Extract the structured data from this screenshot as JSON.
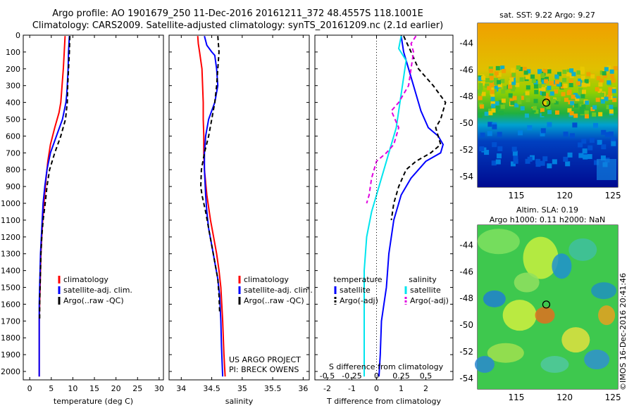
{
  "header": {
    "line1": "Argo profile: AO 1901679_250 11-Dec-2016 20161211_372 48.4557S 118.1001E",
    "line2": "Climatology: CARS2009. Satellite-adjusted climatology: synTS_20161209.nc (2.1d earlier)"
  },
  "colors": {
    "climatology": "#ff0000",
    "satellite": "#0000ff",
    "argo": "#000000",
    "salinity_sat": "#00e5ee",
    "salinity_argo": "#e000e0"
  },
  "chart_data": [
    {
      "type": "line",
      "panel": "temperature",
      "xlabel": "temperature (deg C)",
      "ylabel": "",
      "xlim": [
        -1.5,
        31
      ],
      "ylim": [
        2050,
        0
      ],
      "xticks": [
        "0",
        "5",
        "10",
        "15",
        "20",
        "25",
        "30"
      ],
      "xtick_values": [
        0,
        5,
        10,
        15,
        20,
        25,
        30
      ],
      "yticks": [
        "0",
        "100",
        "200",
        "300",
        "400",
        "500",
        "600",
        "700",
        "800",
        "900",
        "1000",
        "1100",
        "1200",
        "1300",
        "1400",
        "1500",
        "1600",
        "1700",
        "1800",
        "1900",
        "2000"
      ],
      "ytick_values": [
        0,
        100,
        200,
        300,
        400,
        500,
        600,
        700,
        800,
        900,
        1000,
        1100,
        1200,
        1300,
        1400,
        1500,
        1600,
        1700,
        1800,
        1900,
        2000
      ],
      "legend": [
        "climatology",
        "satellite-adj. clim.",
        "Argo(..raw -QC)"
      ],
      "series": [
        {
          "name": "climatology",
          "style": "solid",
          "x": [
            8.2,
            8.0,
            7.8,
            7.5,
            7.2,
            6.8,
            5.8,
            4.8,
            4.2,
            3.8,
            3.3,
            3.0,
            2.8,
            2.6,
            2.5,
            2.4,
            2.3,
            2.2,
            2.2,
            2.2
          ],
          "y": [
            5,
            100,
            200,
            300,
            400,
            460,
            550,
            650,
            750,
            850,
            1000,
            1100,
            1200,
            1300,
            1400,
            1500,
            1600,
            1700,
            1900,
            2030
          ]
        },
        {
          "name": "satellite-adj. clim.",
          "style": "solid",
          "x": [
            9.2,
            9.0,
            8.9,
            8.7,
            8.6,
            8.4,
            7.6,
            6.2,
            4.8,
            4.0,
            3.5,
            3.1,
            2.9,
            2.7,
            2.5,
            2.4,
            2.3,
            2.2,
            2.2,
            2.2
          ],
          "y": [
            5,
            100,
            200,
            300,
            350,
            400,
            500,
            600,
            700,
            800,
            900,
            1000,
            1100,
            1200,
            1300,
            1400,
            1500,
            1600,
            1800,
            2030
          ]
        },
        {
          "name": "Argo(..raw -QC)",
          "style": "dashed",
          "x": [
            9.3,
            9.2,
            9.0,
            8.8,
            8.7,
            8.3,
            7.2,
            5.8,
            4.6,
            4.0,
            3.6,
            3.1,
            2.8,
            2.6,
            2.5,
            2.4,
            2.3,
            2.3
          ],
          "y": [
            5,
            100,
            200,
            300,
            400,
            500,
            600,
            700,
            800,
            900,
            1000,
            1100,
            1200,
            1300,
            1400,
            1500,
            1600,
            1700
          ]
        }
      ]
    },
    {
      "type": "line",
      "panel": "salinity",
      "xlabel": "salinity",
      "xlim": [
        33.8,
        36.1
      ],
      "ylim": [
        2050,
        0
      ],
      "xticks": [
        "34",
        "34.5",
        "35",
        "35.5",
        "36"
      ],
      "xtick_values": [
        34,
        34.5,
        35,
        35.5,
        36
      ],
      "legend": [
        "climatology",
        "satellite-adj. clim.",
        "Argo(..raw -QC)"
      ],
      "annotation": [
        "US ARGO PROJECT",
        "PI: BRECK OWENS"
      ],
      "series": [
        {
          "name": "climatology",
          "style": "solid",
          "x": [
            34.27,
            34.28,
            34.3,
            34.34,
            34.35,
            34.36,
            34.36,
            34.37,
            34.37,
            34.38,
            34.42,
            34.48,
            34.53,
            34.58,
            34.62,
            34.65,
            34.68,
            34.7,
            34.72
          ],
          "y": [
            5,
            50,
            100,
            200,
            300,
            400,
            500,
            600,
            700,
            800,
            950,
            1100,
            1200,
            1300,
            1400,
            1500,
            1700,
            1900,
            2030
          ]
        },
        {
          "name": "satellite-adj. clim.",
          "style": "solid",
          "x": [
            34.38,
            34.42,
            34.5,
            34.55,
            34.58,
            34.6,
            34.55,
            34.45,
            34.4,
            34.38,
            34.38,
            34.4,
            34.42,
            34.45,
            34.5,
            34.55,
            34.6,
            34.63,
            34.65,
            34.66,
            34.68
          ],
          "y": [
            5,
            60,
            100,
            120,
            200,
            300,
            400,
            500,
            600,
            700,
            800,
            950,
            1050,
            1150,
            1250,
            1350,
            1450,
            1550,
            1700,
            1850,
            2030
          ]
        },
        {
          "name": "Argo(..raw -QC)",
          "style": "dashed",
          "x": [
            34.6,
            34.62,
            34.6,
            34.58,
            34.55,
            34.5,
            34.45,
            34.38,
            34.33,
            34.32,
            34.34,
            34.4,
            34.45,
            34.5,
            34.55,
            34.6,
            34.62,
            34.63
          ],
          "y": [
            5,
            100,
            200,
            300,
            400,
            500,
            600,
            700,
            800,
            900,
            950,
            1050,
            1150,
            1250,
            1350,
            1450,
            1550,
            1650
          ]
        }
      ]
    },
    {
      "type": "line",
      "panel": "difference",
      "xlabel": "T difference from climatology",
      "xlabel_top": "S difference from climatology",
      "xlim": [
        -2.5,
        3.1
      ],
      "ylim": [
        2050,
        0
      ],
      "xticks": [
        "-2",
        "-1",
        "0",
        "1",
        "2"
      ],
      "xtick_values": [
        -2,
        -1,
        0,
        1,
        2
      ],
      "sticks": [
        "-0.5",
        "-0.25",
        "0",
        "0.25",
        "0.5"
      ],
      "stick_pos": [
        -2,
        -1,
        0,
        1,
        2
      ],
      "legend_headers": [
        "temperature",
        "salinity"
      ],
      "legend": [
        "satellite",
        "Argo(-adj)",
        "satellite",
        "Argo(-adj)"
      ],
      "series": [
        {
          "name": "satellite",
          "quantity": "temperature",
          "style": "solid",
          "x": [
            1.0,
            1.1,
            1.3,
            1.5,
            1.7,
            1.8,
            2.1,
            2.5,
            2.7,
            2.6,
            2.0,
            1.4,
            1.0,
            0.7,
            0.5,
            0.4,
            0.3,
            0.2,
            0.15,
            0.1
          ],
          "y": [
            5,
            100,
            200,
            300,
            400,
            450,
            550,
            600,
            650,
            700,
            750,
            850,
            950,
            1100,
            1300,
            1500,
            1600,
            1700,
            1900,
            2030
          ]
        },
        {
          "name": "Argo(-adj)",
          "quantity": "temperature",
          "style": "dashed",
          "x": [
            1.1,
            1.4,
            1.7,
            2.3,
            2.8,
            2.6,
            2.4,
            2.5,
            2.6,
            2.2,
            1.6,
            1.2,
            0.9,
            0.7,
            0.6
          ],
          "y": [
            5,
            100,
            200,
            300,
            400,
            500,
            550,
            600,
            650,
            700,
            750,
            800,
            900,
            1000,
            1100
          ]
        },
        {
          "name": "satellite",
          "quantity": "salinity",
          "style": "solid",
          "x": [
            1.0,
            0.9,
            1.2,
            1.1,
            1.0,
            0.9,
            0.8,
            0.6,
            0.4,
            0.2,
            0.0,
            -0.2,
            -0.4,
            -0.5,
            -0.5,
            -0.5,
            -0.5
          ],
          "y": [
            5,
            80,
            150,
            250,
            350,
            450,
            550,
            650,
            750,
            850,
            950,
            1050,
            1200,
            1400,
            1600,
            1800,
            2030
          ]
        },
        {
          "name": "Argo(-adj)",
          "quantity": "salinity",
          "style": "dashed",
          "x": [
            1.6,
            1.4,
            1.5,
            1.3,
            0.9,
            0.6,
            0.9,
            0.7,
            0.4,
            0.0,
            -0.2,
            -0.3,
            -0.4
          ],
          "y": [
            5,
            50,
            100,
            300,
            400,
            450,
            550,
            650,
            700,
            750,
            850,
            950,
            1000
          ]
        }
      ]
    },
    {
      "type": "heatmap",
      "panel": "sst_map",
      "title": "sat. SST: 9.22 Argo: 9.27",
      "xticks": [
        "115",
        "120",
        "125"
      ],
      "xtick_values": [
        115,
        120,
        125
      ],
      "yticks": [
        "-44",
        "-46",
        "-48",
        "-50",
        "-52",
        "-54"
      ],
      "ytick_values": [
        -44,
        -46,
        -48,
        -50,
        -52,
        -54
      ],
      "xlim": [
        111,
        125.5
      ],
      "ylim": [
        -54.8,
        -42.5
      ],
      "marker": {
        "lon": 118.1,
        "lat": -48.46
      }
    },
    {
      "type": "heatmap",
      "panel": "sla_map",
      "title": "Altim. SLA: 0.19",
      "subtitle": "Argo h1000: 0.11 h2000: NaN",
      "xticks": [
        "115",
        "120",
        "125"
      ],
      "xtick_values": [
        115,
        120,
        125
      ],
      "yticks": [
        "-44",
        "-46",
        "-48",
        "-50",
        "-52",
        "-54"
      ],
      "ytick_values": [
        -44,
        -46,
        -48,
        -50,
        -52,
        -54
      ],
      "xlim": [
        111,
        125.5
      ],
      "ylim": [
        -54.8,
        -42.5
      ],
      "marker": {
        "lon": 118.1,
        "lat": -48.46
      }
    }
  ],
  "stamp": "©IMOS 16-Dec-2016 20:41:46"
}
